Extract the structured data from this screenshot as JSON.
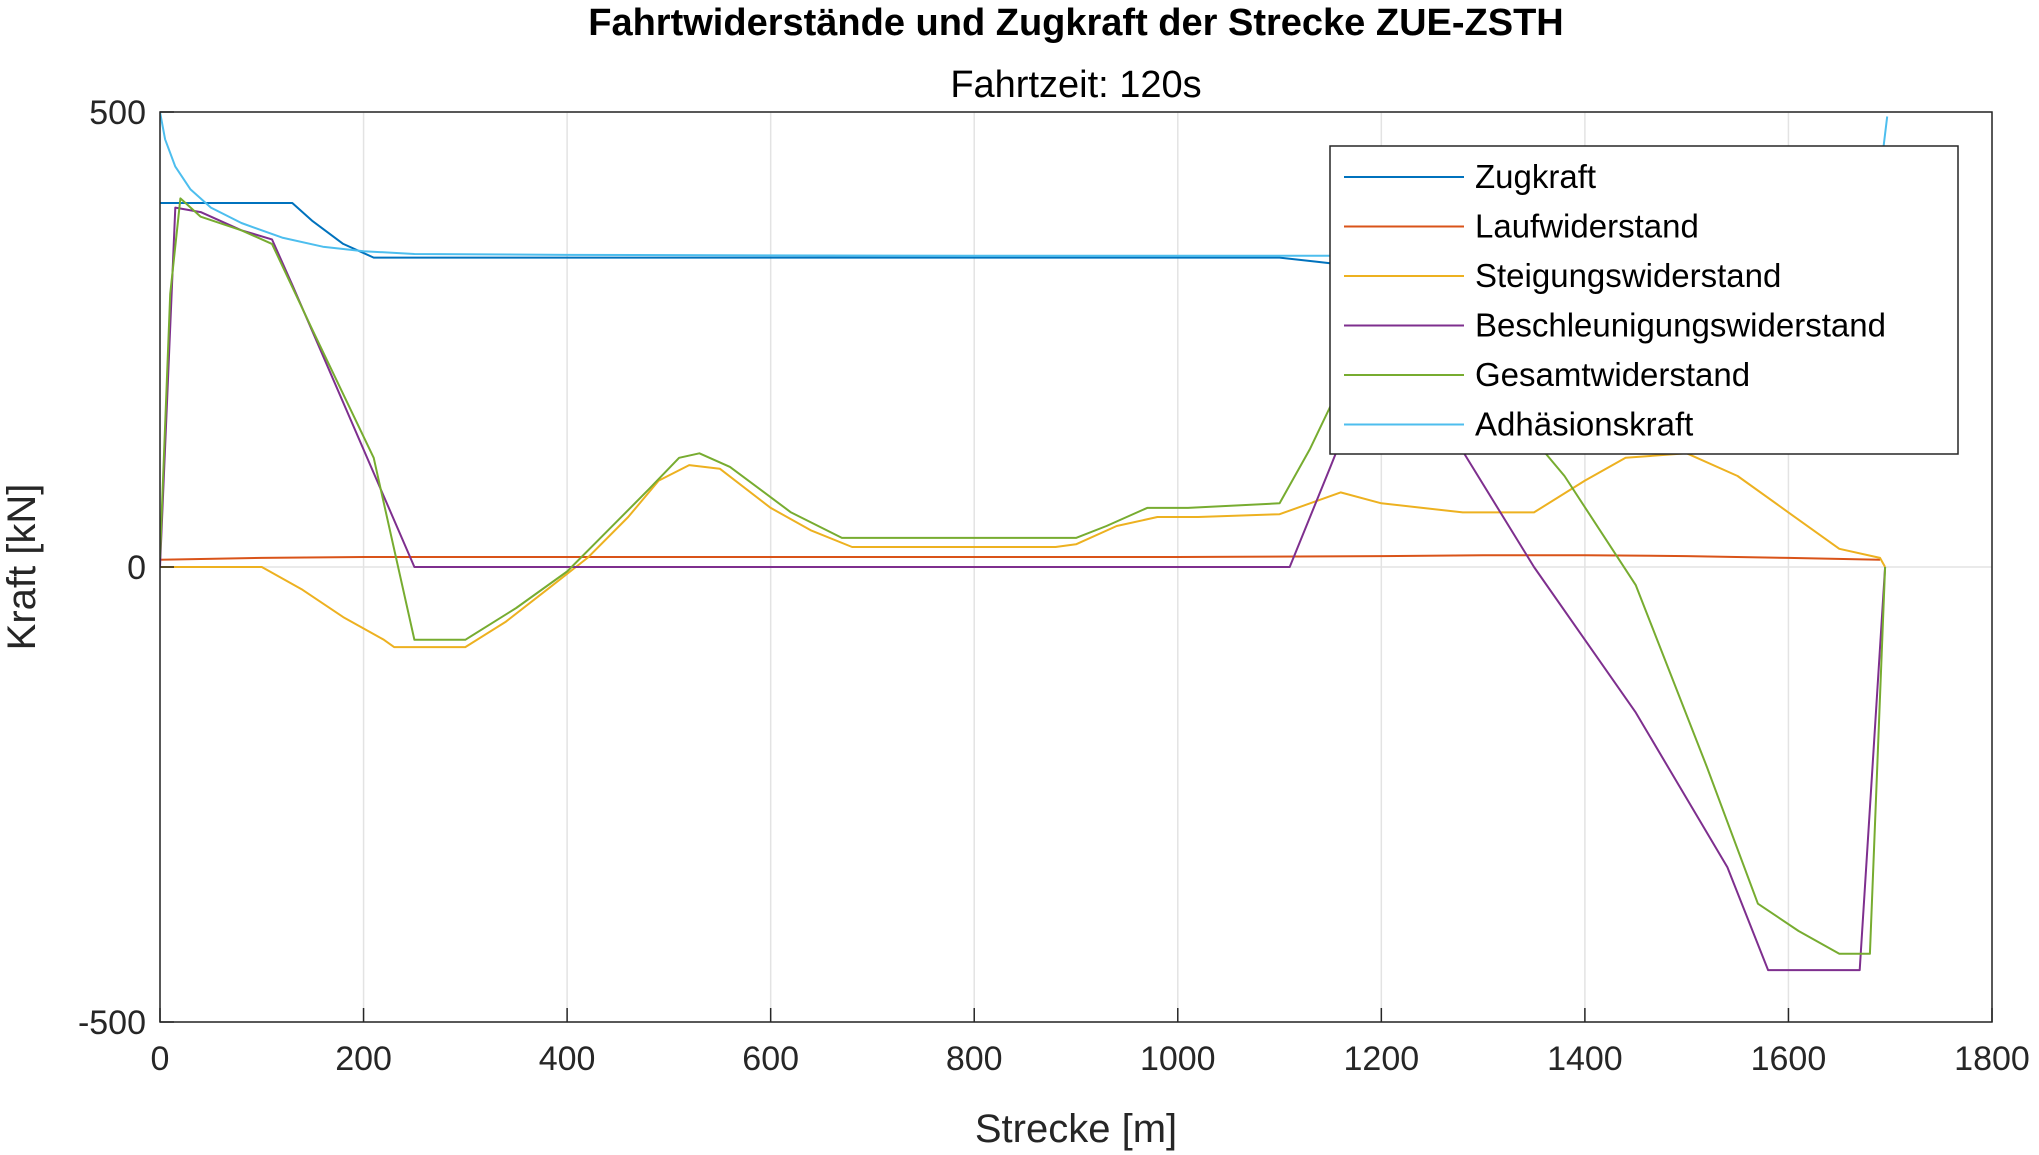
{
  "chart_data": {
    "type": "line",
    "title": "Fahrtwiderstände und Zugkraft der Strecke ZUE-ZSTH",
    "subtitle": "Fahrtzeit: 120s",
    "xlabel": "Strecke [m]",
    "ylabel": "Kraft [kN]",
    "xlim": [
      0,
      1800
    ],
    "ylim": [
      -500,
      500
    ],
    "xticks": [
      0,
      200,
      400,
      600,
      800,
      1000,
      1200,
      1400,
      1600,
      1800
    ],
    "yticks": [
      -500,
      0,
      500
    ],
    "xtick_labels": [
      "0",
      "200",
      "400",
      "600",
      "800",
      "1000",
      "1200",
      "1400",
      "1600",
      "1800"
    ],
    "ytick_labels": [
      "-500",
      "0",
      "500"
    ],
    "grid": true,
    "legend": "top-right",
    "series": [
      {
        "name": "Zugkraft",
        "color": "#0072BD",
        "points": [
          [
            0,
            400
          ],
          [
            130,
            400
          ],
          [
            150,
            380
          ],
          [
            180,
            355
          ],
          [
            210,
            340
          ],
          [
            250,
            340
          ],
          [
            1100,
            340
          ],
          [
            1140,
            335
          ],
          [
            1180,
            330
          ]
        ]
      },
      {
        "name": "Laufwiderstand",
        "color": "#D95319",
        "points": [
          [
            0,
            8
          ],
          [
            100,
            10
          ],
          [
            200,
            11
          ],
          [
            400,
            11
          ],
          [
            800,
            11
          ],
          [
            1000,
            11
          ],
          [
            1200,
            12
          ],
          [
            1300,
            13
          ],
          [
            1400,
            13
          ],
          [
            1500,
            12
          ],
          [
            1600,
            10
          ],
          [
            1690,
            8
          ]
        ]
      },
      {
        "name": "Steigungswiderstand",
        "color": "#EDB120",
        "points": [
          [
            0,
            0
          ],
          [
            100,
            0
          ],
          [
            140,
            -25
          ],
          [
            180,
            -55
          ],
          [
            220,
            -80
          ],
          [
            230,
            -88
          ],
          [
            300,
            -88
          ],
          [
            340,
            -60
          ],
          [
            380,
            -25
          ],
          [
            420,
            10
          ],
          [
            460,
            55
          ],
          [
            490,
            95
          ],
          [
            520,
            112
          ],
          [
            550,
            108
          ],
          [
            600,
            65
          ],
          [
            640,
            40
          ],
          [
            680,
            22
          ],
          [
            880,
            22
          ],
          [
            900,
            25
          ],
          [
            940,
            45
          ],
          [
            980,
            55
          ],
          [
            1020,
            55
          ],
          [
            1100,
            58
          ],
          [
            1160,
            82
          ],
          [
            1200,
            70
          ],
          [
            1280,
            60
          ],
          [
            1350,
            60
          ],
          [
            1400,
            95
          ],
          [
            1440,
            120
          ],
          [
            1500,
            125
          ],
          [
            1550,
            100
          ],
          [
            1600,
            60
          ],
          [
            1650,
            20
          ],
          [
            1690,
            10
          ],
          [
            1695,
            0
          ]
        ]
      },
      {
        "name": "Beschleunigungswiderstand",
        "color": "#7E2F8E",
        "points": [
          [
            0,
            0
          ],
          [
            15,
            395
          ],
          [
            40,
            390
          ],
          [
            80,
            370
          ],
          [
            110,
            360
          ],
          [
            130,
            310
          ],
          [
            250,
            0
          ],
          [
            1110,
            0
          ],
          [
            1150,
            110
          ],
          [
            1200,
            250
          ],
          [
            1240,
            200
          ],
          [
            1350,
            0
          ],
          [
            1450,
            -160
          ],
          [
            1540,
            -330
          ],
          [
            1580,
            -443
          ],
          [
            1670,
            -443
          ],
          [
            1695,
            0
          ]
        ]
      },
      {
        "name": "Gesamtwiderstand",
        "color": "#77AC30",
        "points": [
          [
            0,
            10
          ],
          [
            10,
            300
          ],
          [
            20,
            405
          ],
          [
            40,
            385
          ],
          [
            80,
            370
          ],
          [
            110,
            355
          ],
          [
            150,
            260
          ],
          [
            210,
            120
          ],
          [
            250,
            -80
          ],
          [
            300,
            -80
          ],
          [
            350,
            -45
          ],
          [
            400,
            -5
          ],
          [
            440,
            40
          ],
          [
            480,
            85
          ],
          [
            510,
            120
          ],
          [
            530,
            125
          ],
          [
            560,
            110
          ],
          [
            620,
            60
          ],
          [
            670,
            32
          ],
          [
            900,
            32
          ],
          [
            930,
            45
          ],
          [
            970,
            65
          ],
          [
            1010,
            65
          ],
          [
            1100,
            70
          ],
          [
            1130,
            130
          ],
          [
            1160,
            200
          ],
          [
            1220,
            380
          ],
          [
            1320,
            180
          ],
          [
            1380,
            100
          ],
          [
            1450,
            -20
          ],
          [
            1520,
            -220
          ],
          [
            1570,
            -370
          ],
          [
            1610,
            -400
          ],
          [
            1650,
            -425
          ],
          [
            1680,
            -425
          ],
          [
            1695,
            0
          ]
        ]
      },
      {
        "name": "Adhäsionskraft",
        "color": "#4DBEEE",
        "points": [
          [
            0,
            500
          ],
          [
            5,
            470
          ],
          [
            15,
            440
          ],
          [
            30,
            415
          ],
          [
            50,
            395
          ],
          [
            80,
            378
          ],
          [
            120,
            362
          ],
          [
            160,
            352
          ],
          [
            200,
            347
          ],
          [
            250,
            344
          ],
          [
            400,
            343
          ],
          [
            800,
            342
          ],
          [
            1150,
            342
          ],
          [
            1680,
            342
          ],
          [
            1690,
            430
          ],
          [
            1697,
            495
          ]
        ]
      }
    ]
  }
}
